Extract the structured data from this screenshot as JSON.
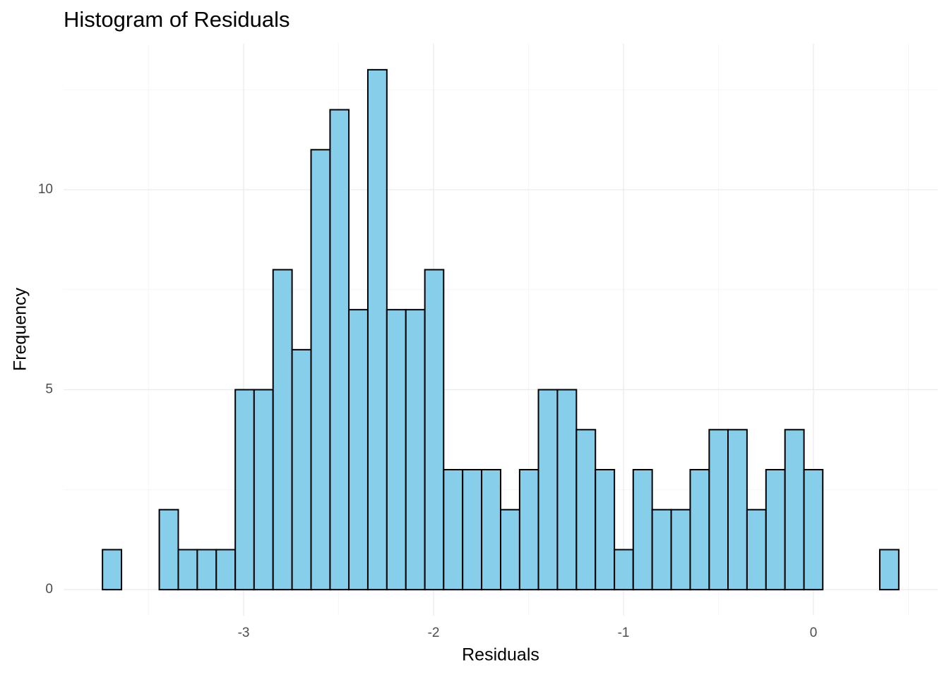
{
  "chart_data": {
    "type": "histogram",
    "title": "Histogram of Residuals",
    "x_label": "Residuals",
    "y_label": "Frequency",
    "bins": [
      -3.743,
      -3.643,
      -3.544,
      -3.444,
      -3.344,
      -3.244,
      -3.144,
      -3.044,
      -2.945,
      -2.845,
      -2.745,
      -2.645,
      -2.545,
      -2.446,
      -2.346,
      -2.246,
      -2.146,
      -2.046,
      -1.947,
      -1.847,
      -1.747,
      -1.647,
      -1.547,
      -1.448,
      -1.348,
      -1.248,
      -1.148,
      -1.048,
      -0.949,
      -0.849,
      -0.749,
      -0.649,
      -0.549,
      -0.45,
      -0.35,
      -0.25,
      -0.15,
      -0.05,
      0.049,
      0.149,
      0.249,
      0.349,
      0.449
    ],
    "values": [
      1,
      0,
      0,
      2,
      1,
      1,
      1,
      5,
      5,
      8,
      6,
      11,
      12,
      7,
      13,
      7,
      7,
      8,
      3,
      3,
      3,
      2,
      3,
      5,
      5,
      4,
      3,
      1,
      3,
      2,
      2,
      3,
      4,
      4,
      2,
      3,
      4,
      3,
      0,
      0,
      0,
      1
    ],
    "color": "#87ceeb",
    "edge_color": "#000000",
    "xlim": [
      -3.948,
      0.654
    ],
    "xticks": [
      -3,
      -2,
      -1,
      0
    ],
    "ylim": [
      -0.65,
      13.65
    ],
    "yticks": [
      0,
      5,
      10
    ],
    "x_minor_grid": [
      -3.5,
      -2.5,
      -1.5,
      -0.5,
      0.5
    ],
    "y_minor_grid": [
      2.5,
      7.5,
      12.5
    ],
    "grid": true
  }
}
